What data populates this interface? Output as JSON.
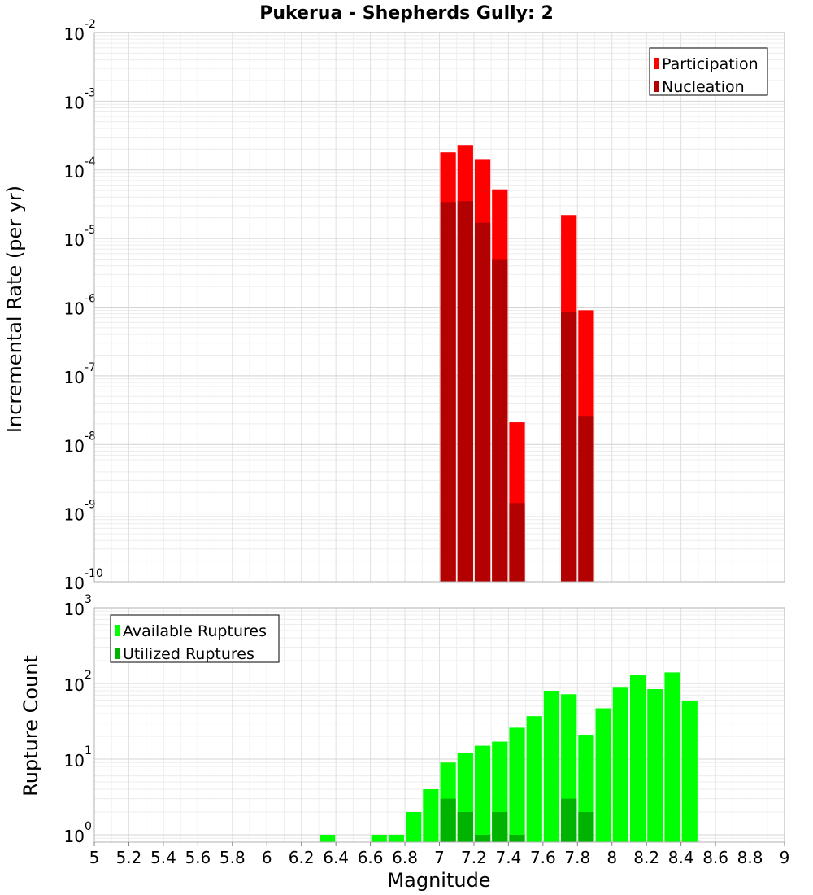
{
  "chart_data": [
    {
      "type": "bar",
      "title": "Pukerua - Shepherds Gully: 2",
      "xlabel": "",
      "ylabel": "Incremental Rate (per yr)",
      "xlim": [
        5,
        9
      ],
      "ylim": [
        1e-10,
        0.01
      ],
      "yscale": "log",
      "grid": true,
      "legend_position": "top-right",
      "yticks": [
        {
          "value": 0.01,
          "base": "10",
          "exp": "-2"
        },
        {
          "value": 0.001,
          "base": "10",
          "exp": "-3"
        },
        {
          "value": 0.0001,
          "base": "10",
          "exp": "-4"
        },
        {
          "value": 1e-05,
          "base": "10",
          "exp": "-5"
        },
        {
          "value": 1e-06,
          "base": "10",
          "exp": "-6"
        },
        {
          "value": 1e-07,
          "base": "10",
          "exp": "-7"
        },
        {
          "value": 1e-08,
          "base": "10",
          "exp": "-8"
        },
        {
          "value": 1e-09,
          "base": "10",
          "exp": "-9"
        },
        {
          "value": 1e-10,
          "base": "10",
          "exp": "-10"
        }
      ],
      "series": [
        {
          "name": "Participation",
          "color": "#ff0000",
          "x": [
            7.05,
            7.15,
            7.25,
            7.35,
            7.45,
            7.75,
            7.85
          ],
          "values": [
            0.00018,
            0.00023,
            0.00014,
            5.2e-05,
            2.1e-08,
            2.2e-05,
            9e-07
          ]
        },
        {
          "name": "Nucleation",
          "color": "#b30000",
          "x": [
            7.05,
            7.15,
            7.25,
            7.35,
            7.45,
            7.75,
            7.85
          ],
          "values": [
            3.4e-05,
            3.5e-05,
            1.7e-05,
            5e-06,
            1.4e-09,
            8.5e-07,
            2.6e-08
          ]
        }
      ]
    },
    {
      "type": "bar",
      "xlabel": "Magnitude",
      "ylabel": "Rupture Count",
      "xlim": [
        5,
        9
      ],
      "ylim": [
        0.8,
        1000
      ],
      "yscale": "log",
      "grid": true,
      "legend_position": "top-left",
      "xticks": [
        "5",
        "5.2",
        "5.4",
        "5.6",
        "5.8",
        "6",
        "6.2",
        "6.4",
        "6.6",
        "6.8",
        "7",
        "7.2",
        "7.4",
        "7.6",
        "7.8",
        "8",
        "8.2",
        "8.4",
        "8.6",
        "8.8",
        "9"
      ],
      "yticks": [
        {
          "value": 1000,
          "base": "10",
          "exp": "3"
        },
        {
          "value": 100,
          "base": "10",
          "exp": "2"
        },
        {
          "value": 10,
          "base": "10",
          "exp": "1"
        },
        {
          "value": 1,
          "base": "10",
          "exp": "0"
        }
      ],
      "series": [
        {
          "name": "Available Ruptures",
          "color": "#00ff00",
          "x": [
            6.35,
            6.65,
            6.75,
            6.85,
            6.95,
            7.05,
            7.15,
            7.25,
            7.35,
            7.45,
            7.55,
            7.65,
            7.75,
            7.85,
            7.95,
            8.05,
            8.15,
            8.25,
            8.35,
            8.45
          ],
          "values": [
            1,
            1,
            1,
            2,
            4,
            9,
            12,
            15,
            17,
            26,
            37,
            80,
            72,
            21,
            47,
            90,
            130,
            84,
            140,
            58
          ]
        },
        {
          "name": "Utilized Ruptures",
          "color": "#00b300",
          "x": [
            7.05,
            7.15,
            7.25,
            7.35,
            7.45,
            7.75,
            7.85
          ],
          "values": [
            3,
            2,
            1,
            2,
            1,
            3,
            2
          ]
        }
      ]
    }
  ]
}
